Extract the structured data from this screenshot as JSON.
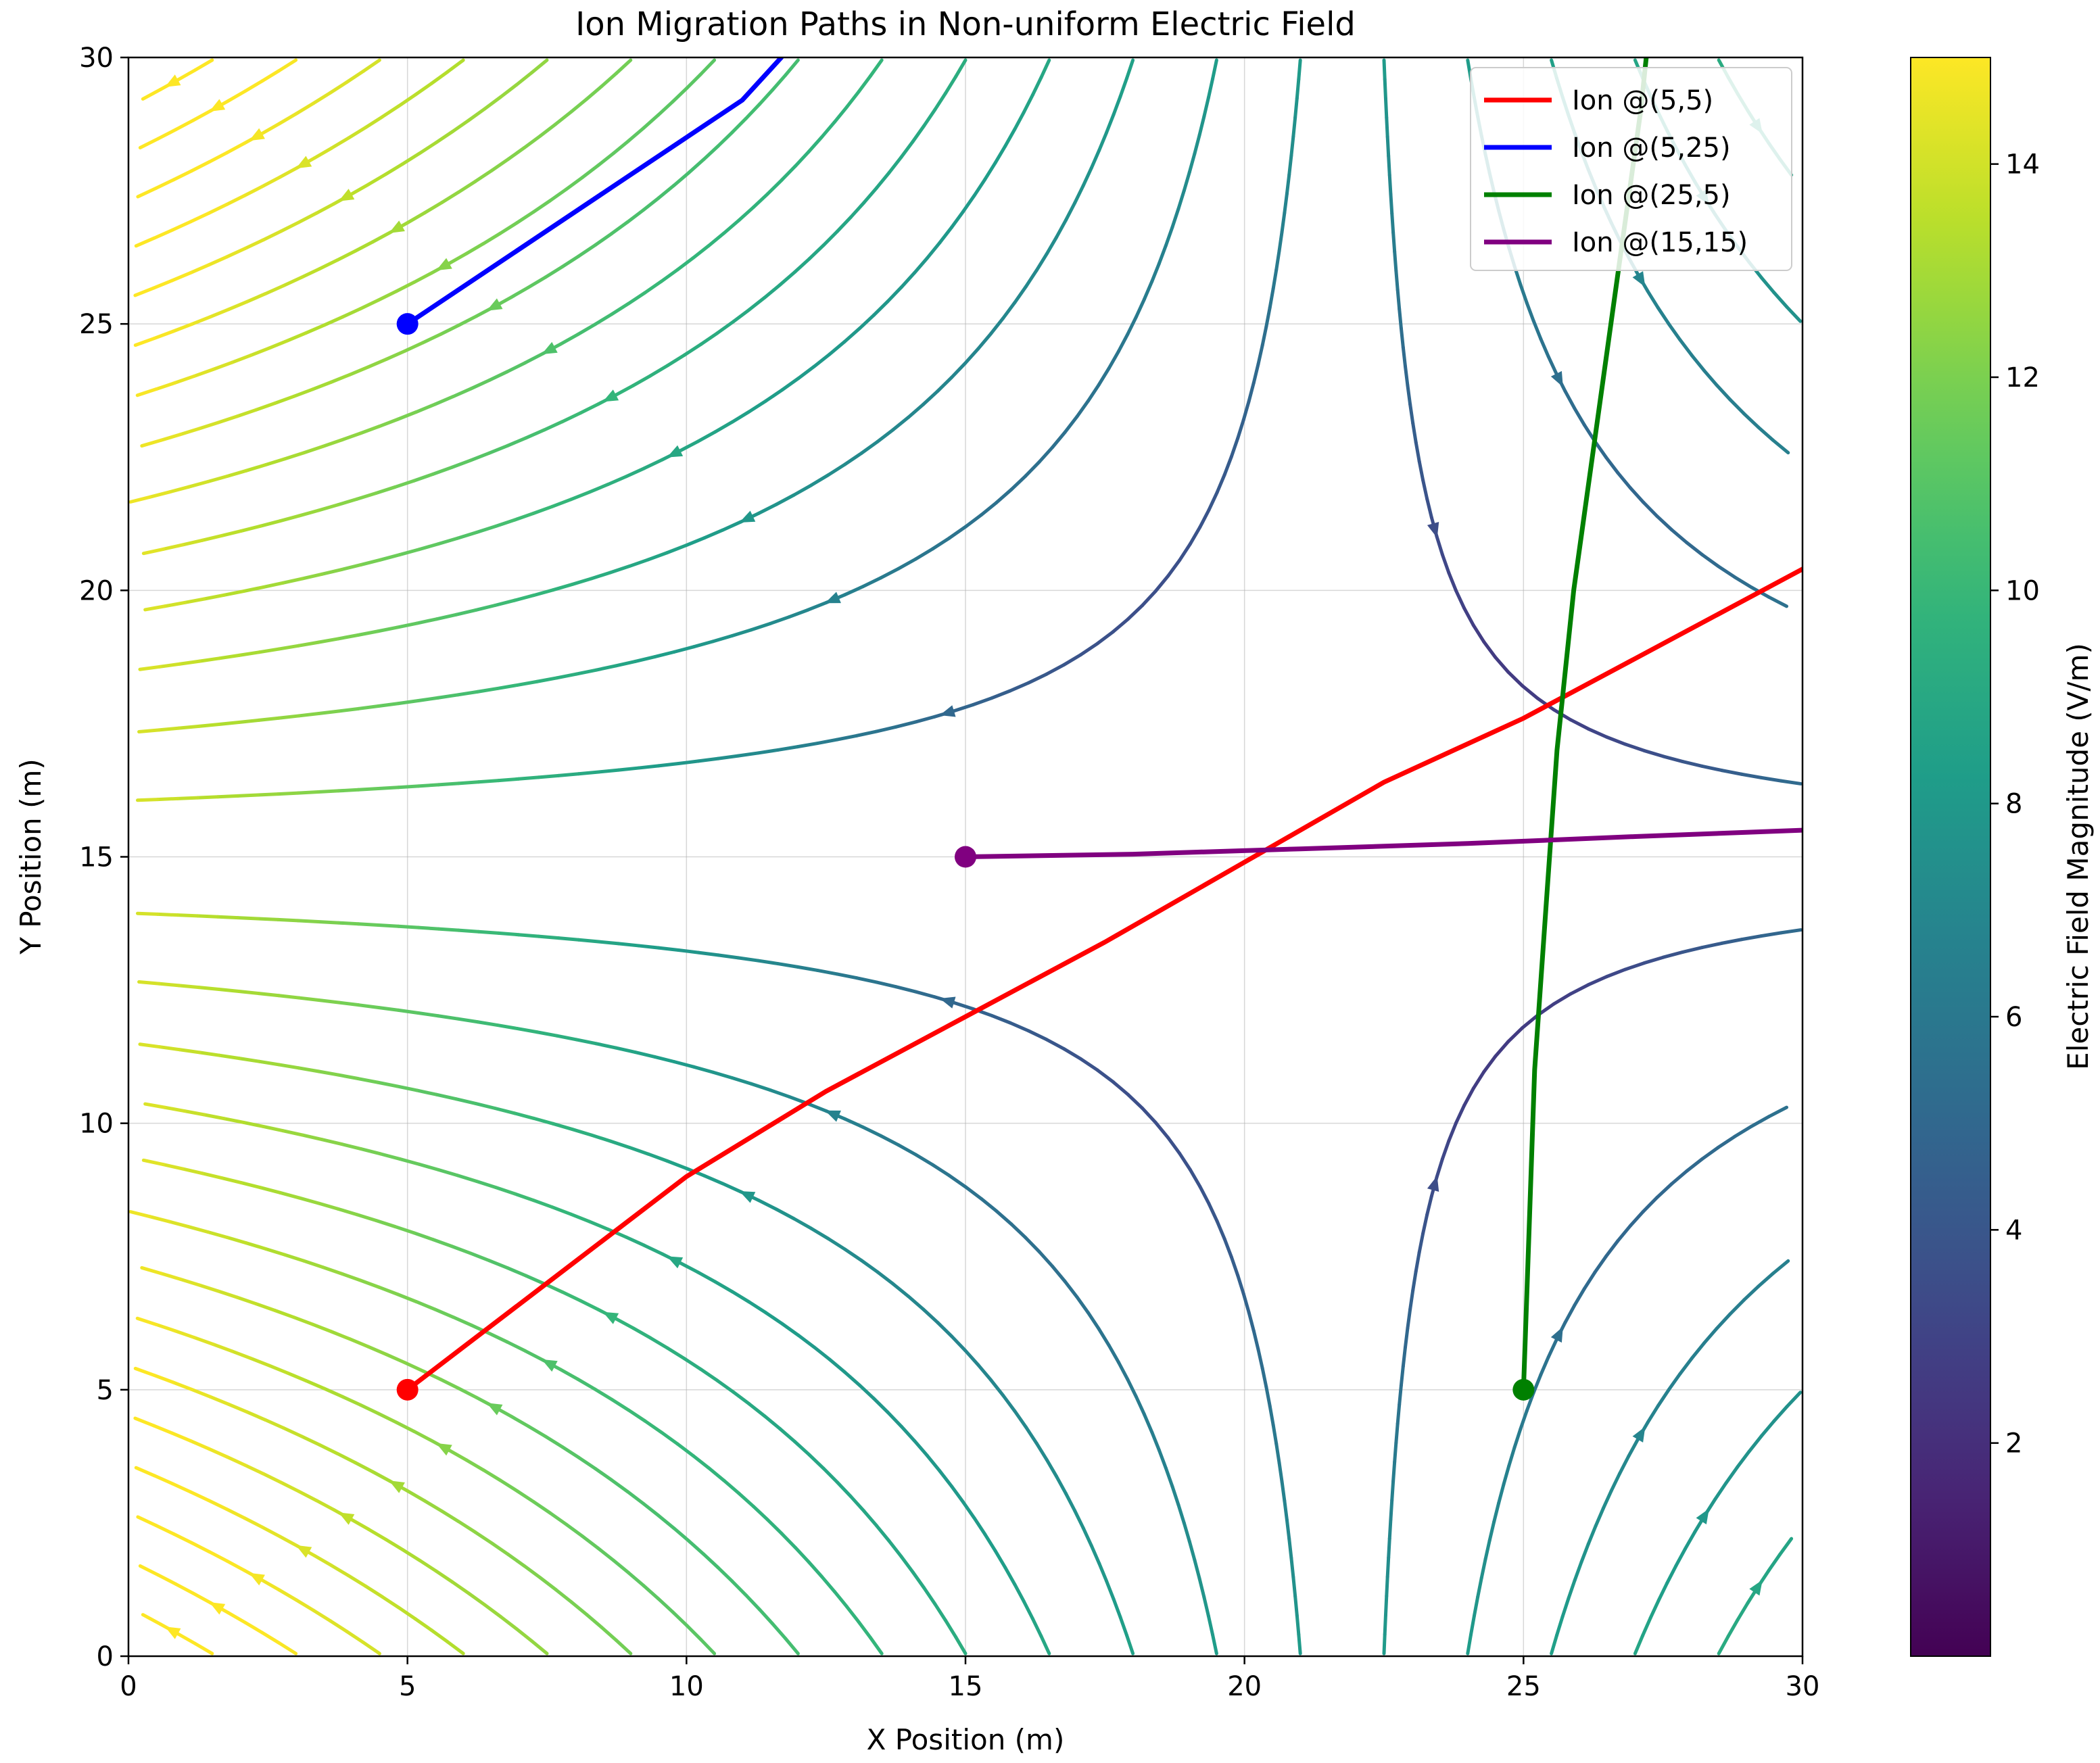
{
  "chart_data": {
    "type": "streamplot",
    "title": "Ion Migration Paths in Non-uniform Electric Field",
    "xlabel": "X Position (m)",
    "ylabel": "Y Position (m)",
    "xlim": [
      0,
      30
    ],
    "ylim": [
      0,
      30
    ],
    "xticks": [
      0,
      5,
      10,
      15,
      20,
      25,
      30
    ],
    "yticks": [
      0,
      5,
      10,
      15,
      20,
      25,
      30
    ],
    "grid": true,
    "field": {
      "description": "saddle-shaped non-uniform field with null point near (22, 15)",
      "null_point": [
        22,
        15
      ],
      "magnitude_range": [
        0,
        15
      ]
    },
    "colorbar": {
      "label": "Electric Field Magnitude (V/m)",
      "colormap": "viridis",
      "min": 0,
      "max": 15,
      "ticks": [
        2,
        4,
        6,
        8,
        10,
        12,
        14
      ]
    },
    "legend_position": "top-right",
    "series": [
      {
        "name": "Ion @(5,5)",
        "color": "#ff0000",
        "start": [
          5,
          5
        ],
        "points": [
          [
            5,
            5
          ],
          [
            7.5,
            7.0
          ],
          [
            10,
            9.0
          ],
          [
            12.5,
            10.6
          ],
          [
            15,
            12.0
          ],
          [
            17.5,
            13.4
          ],
          [
            20,
            14.9
          ],
          [
            22.5,
            16.4
          ],
          [
            25,
            17.6
          ],
          [
            27.5,
            19.0
          ],
          [
            30,
            20.4
          ]
        ]
      },
      {
        "name": "Ion @(5,25)",
        "color": "#0000ff",
        "start": [
          5,
          25
        ],
        "points": [
          [
            5,
            25
          ],
          [
            7,
            26.4
          ],
          [
            9,
            27.8
          ],
          [
            11,
            29.2
          ],
          [
            11.7,
            30
          ]
        ]
      },
      {
        "name": "Ion @(25,5)",
        "color": "#008000",
        "start": [
          25,
          5
        ],
        "points": [
          [
            25,
            5
          ],
          [
            25.1,
            8
          ],
          [
            25.2,
            11
          ],
          [
            25.4,
            14
          ],
          [
            25.6,
            17
          ],
          [
            25.9,
            20
          ],
          [
            26.3,
            23
          ],
          [
            26.7,
            26
          ],
          [
            27.1,
            29
          ],
          [
            27.2,
            30
          ]
        ]
      },
      {
        "name": "Ion @(15,15)",
        "color": "#800080",
        "start": [
          15,
          15
        ],
        "points": [
          [
            15,
            15
          ],
          [
            18,
            15.05
          ],
          [
            21,
            15.15
          ],
          [
            24,
            15.25
          ],
          [
            27,
            15.38
          ],
          [
            30,
            15.5
          ]
        ]
      }
    ]
  }
}
